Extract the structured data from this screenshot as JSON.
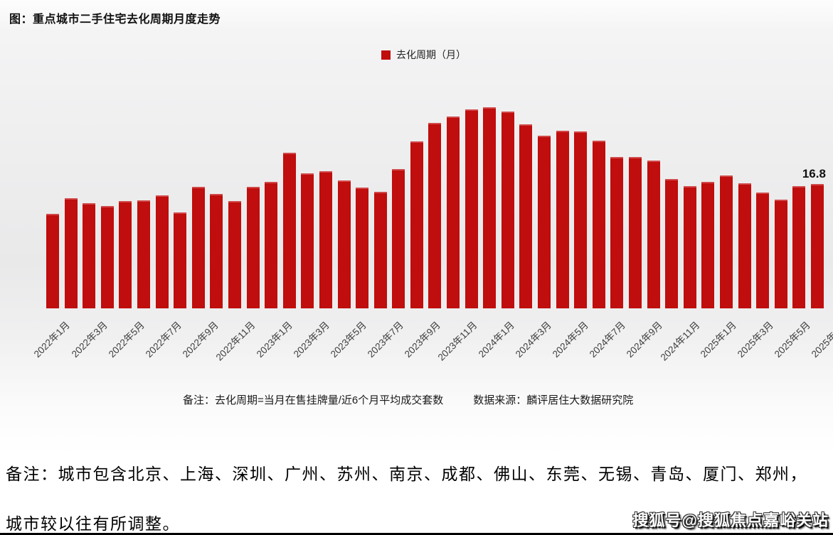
{
  "chart_data": {
    "type": "bar",
    "title": "图：重点城市二手住宅去化周期月度走势",
    "legend": [
      "去化周期（月）"
    ],
    "legend_position": "top-center",
    "bar_color": "#c00d0d",
    "grid": false,
    "ylim": [
      0,
      28
    ],
    "x_tick_step": 2,
    "categories": [
      "2022年1月",
      "2022年2月",
      "2022年3月",
      "2022年4月",
      "2022年5月",
      "2022年6月",
      "2022年7月",
      "2022年8月",
      "2022年9月",
      "2022年10月",
      "2022年11月",
      "2022年12月",
      "2023年1月",
      "2023年2月",
      "2023年3月",
      "2023年4月",
      "2023年5月",
      "2023年6月",
      "2023年7月",
      "2023年8月",
      "2023年9月",
      "2023年10月",
      "2023年11月",
      "2023年12月",
      "2024年1月",
      "2024年2月",
      "2024年3月",
      "2024年4月",
      "2024年5月",
      "2024年6月",
      "2024年7月",
      "2024年8月",
      "2024年9月",
      "2024年10月",
      "2024年11月",
      "2024年12月",
      "2025年1月",
      "2025年2月",
      "2025年3月",
      "2025年4月",
      "2025年5月",
      "2025年6月",
      "2025年7月"
    ],
    "values": [
      12.8,
      14.9,
      14.2,
      13.8,
      14.5,
      14.6,
      15.3,
      13.0,
      16.4,
      15.5,
      14.5,
      16.4,
      17.1,
      21.1,
      18.3,
      18.6,
      17.3,
      16.3,
      15.8,
      18.8,
      22.6,
      25.1,
      26.0,
      26.9,
      27.2,
      26.6,
      24.9,
      23.4,
      24.0,
      23.9,
      22.7,
      20.5,
      20.5,
      20.0,
      17.5,
      16.5,
      17.1,
      18.0,
      16.9,
      15.7,
      14.7,
      16.5,
      16.8
    ],
    "annotations": [
      {
        "category": "2025年7月",
        "text": "16.8"
      }
    ]
  },
  "footnote": {
    "definition": "备注：去化周期=当月在售挂牌量/近6个月平均成交套数",
    "source": "数据来源：麟评居住大数据研究院"
  },
  "notes": {
    "line1": "备注：城市包含北京、上海、深圳、广州、苏州、南京、成都、佛山、东莞、无锡、青岛、厦门、郑州，",
    "line2": "城市较以往有所调整。"
  },
  "watermark": {
    "text": "搜狐号@搜狐焦点嘉峪关站"
  }
}
